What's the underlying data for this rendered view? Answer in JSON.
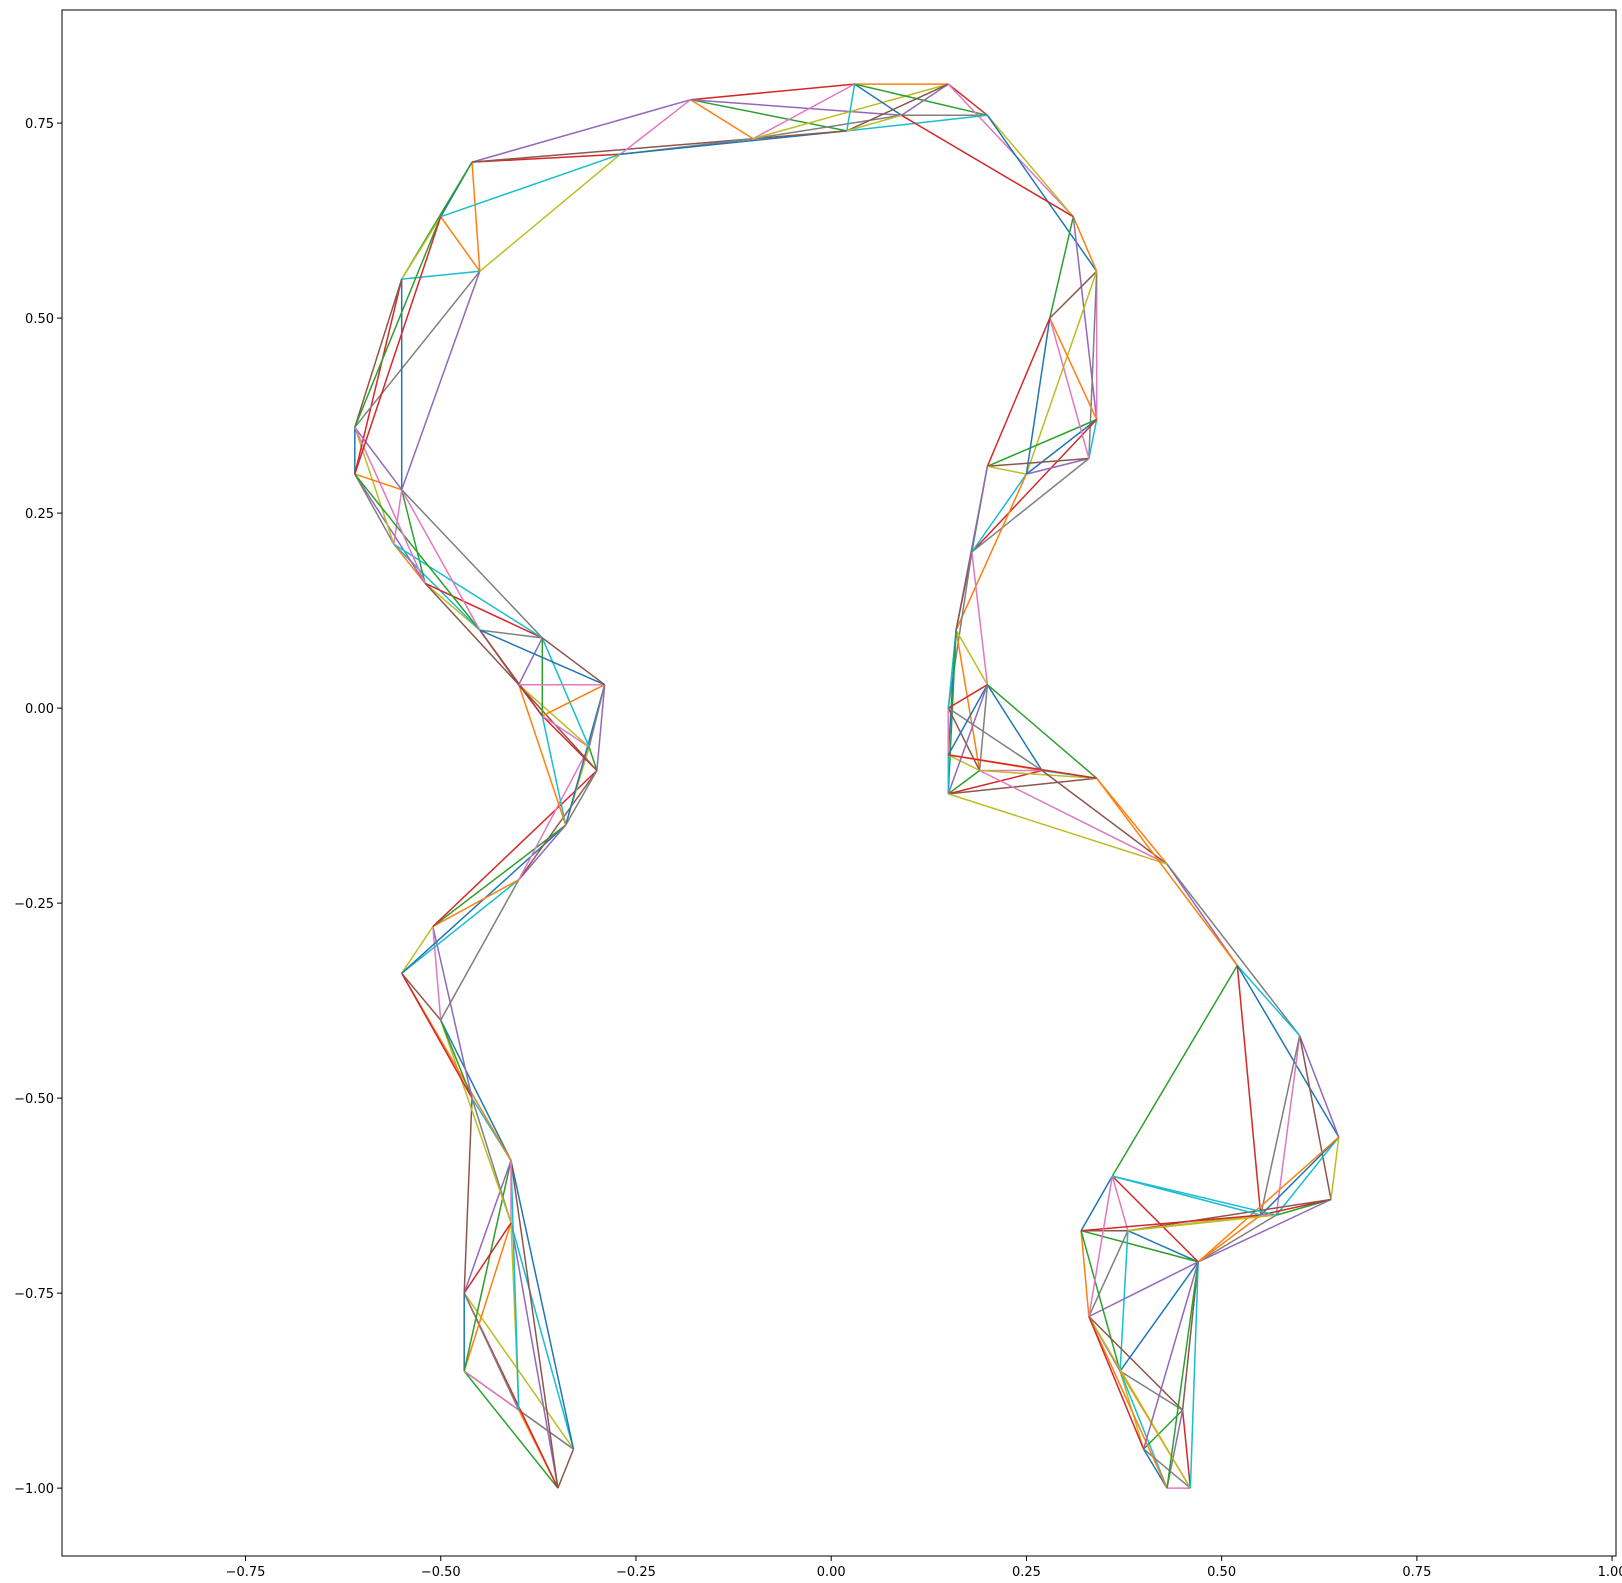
{
  "chart_data": {
    "type": "line",
    "title": "",
    "xlabel": "",
    "ylabel": "",
    "xlim": [
      -0.985,
      1.005
    ],
    "ylim": [
      -1.087,
      0.895
    ],
    "xticks": [
      -0.75,
      -0.5,
      -0.25,
      0.0,
      0.25,
      0.5,
      0.75,
      1.0
    ],
    "yticks": [
      -1.0,
      -0.75,
      -0.5,
      -0.25,
      0.0,
      0.25,
      0.5,
      0.75
    ],
    "xtick_labels": [
      "−0.75",
      "−0.50",
      "−0.25",
      "0.00",
      "0.25",
      "0.50",
      "0.75",
      "1.00"
    ],
    "ytick_labels": [
      "−1.00",
      "−0.75",
      "−0.50",
      "−0.25",
      "0.00",
      "0.25",
      "0.50",
      "0.75"
    ],
    "grid": false,
    "legend": "none",
    "colors": [
      "#1f77b4",
      "#ff7f0e",
      "#2ca02c",
      "#d62728",
      "#9467bd",
      "#8c564b",
      "#e377c2",
      "#7f7f7f",
      "#bcbd22",
      "#17becf"
    ],
    "nodes": [
      [
        -0.46,
        0.7
      ],
      [
        -0.27,
        0.71
      ],
      [
        -0.18,
        0.78
      ],
      [
        -0.1,
        0.73
      ],
      [
        0.03,
        0.8
      ],
      [
        0.15,
        0.8
      ],
      [
        0.2,
        0.76
      ],
      [
        0.31,
        0.63
      ],
      [
        0.34,
        0.56
      ],
      [
        0.34,
        0.37
      ],
      [
        0.33,
        0.32
      ],
      [
        0.25,
        0.3
      ],
      [
        0.2,
        0.31
      ],
      [
        0.18,
        0.2
      ],
      [
        0.16,
        0.1
      ],
      [
        0.15,
        0.0
      ],
      [
        0.15,
        -0.06
      ],
      [
        0.15,
        -0.11
      ],
      [
        0.19,
        -0.08
      ],
      [
        0.27,
        -0.08
      ],
      [
        0.34,
        -0.09
      ],
      [
        0.43,
        -0.2
      ],
      [
        0.52,
        -0.33
      ],
      [
        0.6,
        -0.42
      ],
      [
        0.65,
        -0.55
      ],
      [
        0.64,
        -0.63
      ],
      [
        0.57,
        -0.65
      ],
      [
        0.47,
        -0.71
      ],
      [
        0.38,
        -0.67
      ],
      [
        0.32,
        -0.67
      ],
      [
        0.33,
        -0.78
      ],
      [
        0.37,
        -0.85
      ],
      [
        0.45,
        -0.9
      ],
      [
        0.46,
        -1.0
      ],
      [
        0.43,
        -1.0
      ],
      [
        0.4,
        -0.95
      ],
      [
        -0.33,
        -0.95
      ],
      [
        -0.35,
        -1.0
      ],
      [
        -0.4,
        -0.9
      ],
      [
        -0.47,
        -0.85
      ],
      [
        -0.47,
        -0.75
      ],
      [
        -0.41,
        -0.66
      ],
      [
        -0.41,
        -0.58
      ],
      [
        -0.46,
        -0.5
      ],
      [
        -0.5,
        -0.4
      ],
      [
        -0.55,
        -0.34
      ],
      [
        -0.51,
        -0.28
      ],
      [
        -0.4,
        -0.22
      ],
      [
        -0.34,
        -0.15
      ],
      [
        -0.3,
        -0.08
      ],
      [
        -0.31,
        -0.05
      ],
      [
        -0.37,
        -0.01
      ],
      [
        -0.4,
        0.03
      ],
      [
        -0.45,
        0.1
      ],
      [
        -0.52,
        0.16
      ],
      [
        -0.56,
        0.21
      ],
      [
        -0.61,
        0.3
      ],
      [
        -0.61,
        0.36
      ],
      [
        -0.55,
        0.55
      ],
      [
        -0.5,
        0.63
      ],
      [
        -0.45,
        0.56
      ],
      [
        -0.37,
        0.09
      ],
      [
        -0.29,
        0.03
      ],
      [
        -0.55,
        0.28
      ],
      [
        0.02,
        0.74
      ],
      [
        0.28,
        0.5
      ],
      [
        0.36,
        -0.6
      ],
      [
        0.55,
        -0.65
      ],
      [
        0.2,
        0.03
      ],
      [
        0.09,
        0.76
      ]
    ]
  }
}
